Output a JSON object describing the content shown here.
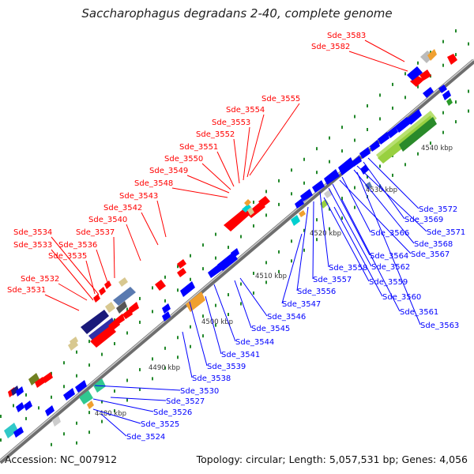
{
  "title": "Saccharophagus degradans 2-40, complete genome",
  "footer": {
    "accession": "Accession: NC_007912",
    "summary": "Topology: circular; Length: 5,057,531 bp; Genes: 4,056"
  },
  "ruler": [
    "4480 kbp",
    "4490 kbp",
    "4500 kbp",
    "4510 kbp",
    "4520 kbp",
    "4530 kbp",
    "4540 kbp"
  ],
  "colors": {
    "forward": "#ff0000",
    "reverse": "#0000ff",
    "backbone": "#888888",
    "tick": "#22882a"
  },
  "labels_forward": [
    "Sde_3583",
    "Sde_3582",
    "Sde_3555",
    "Sde_3554",
    "Sde_3553",
    "Sde_3552",
    "Sde_3551",
    "Sde_3550",
    "Sde_3549",
    "Sde_3548",
    "Sde_3543",
    "Sde_3542",
    "Sde_3540",
    "Sde_3537",
    "Sde_3536",
    "Sde_3534",
    "Sde_3533",
    "Sde_3535",
    "Sde_3532",
    "Sde_3531"
  ],
  "labels_reverse": [
    "Sde_3572",
    "Sde_3569",
    "Sde_3571",
    "Sde_3568",
    "Sde_3566",
    "Sde_3567",
    "Sde_3564",
    "Sde_3562",
    "Sde_3558",
    "Sde_3559",
    "Sde_3557",
    "Sde_3556",
    "Sde_3560",
    "Sde_3547",
    "Sde_3561",
    "Sde_3546",
    "Sde_3563",
    "Sde_3545",
    "Sde_3544",
    "Sde_3541",
    "Sde_3539",
    "Sde_3538",
    "Sde_3530",
    "Sde_3527",
    "Sde_3526",
    "Sde_3525",
    "Sde_3524"
  ]
}
